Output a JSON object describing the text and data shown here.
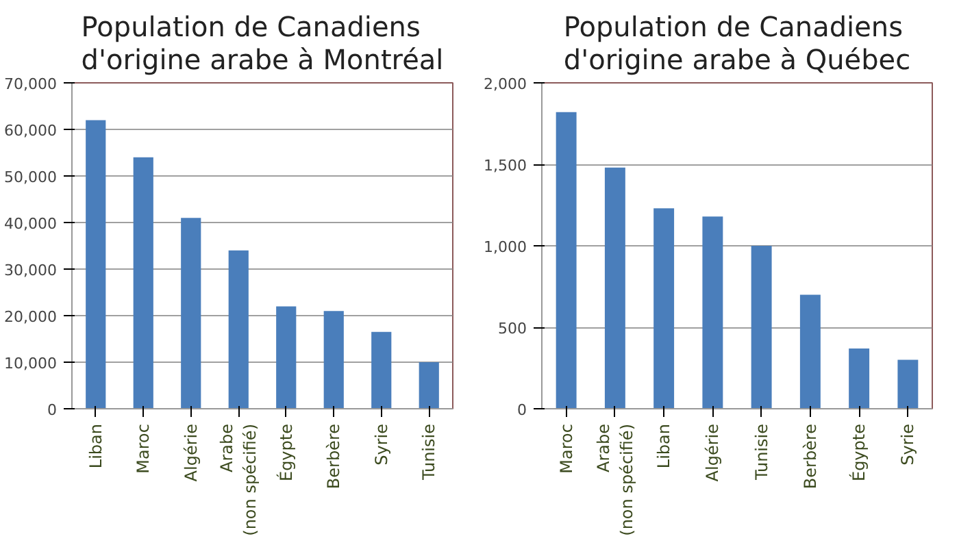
{
  "chart_data": [
    {
      "type": "bar",
      "title": "Population de Canadiens\nd'origine arabe à Montréal",
      "categories": [
        "Liban",
        "Maroc",
        "Algérie",
        "Arabe\n(non spécifié)",
        "Égypte",
        "Berbère",
        "Syrie",
        "Tunisie"
      ],
      "color": "#4a7ebb",
      "values": [
        62000,
        54000,
        41000,
        34000,
        22000,
        21000,
        16500,
        10000
      ],
      "ylim": [
        0,
        70000
      ],
      "yticks": [
        {
          "value": 0,
          "label": "0"
        },
        {
          "value": 10000,
          "label": "10,000"
        },
        {
          "value": 20000,
          "label": "20,000"
        },
        {
          "value": 30000,
          "label": "30,000"
        },
        {
          "value": 40000,
          "label": "40,000"
        },
        {
          "value": 50000,
          "label": "50,000"
        },
        {
          "value": 60000,
          "label": "60,000"
        },
        {
          "value": 70000,
          "label": "70,000"
        }
      ],
      "grid": "y"
    },
    {
      "type": "bar",
      "title": "Population de Canadiens\nd'origine arabe à Québec",
      "categories": [
        "Maroc",
        "Arabe\n(non spécifié)",
        "Liban",
        "Algérie",
        "Tunisie",
        "Berbère",
        "Égypte",
        "Syrie"
      ],
      "color": "#4a7ebb",
      "values": [
        1820,
        1480,
        1230,
        1180,
        1000,
        700,
        370,
        300
      ],
      "ylim": [
        0,
        2000
      ],
      "yticks": [
        {
          "value": 0,
          "label": "0"
        },
        {
          "value": 500,
          "label": "500"
        },
        {
          "value": 1000,
          "label": "1,000"
        },
        {
          "value": 1500,
          "label": "1,500"
        },
        {
          "value": 2000,
          "label": "2,000"
        }
      ],
      "grid": "y"
    }
  ]
}
